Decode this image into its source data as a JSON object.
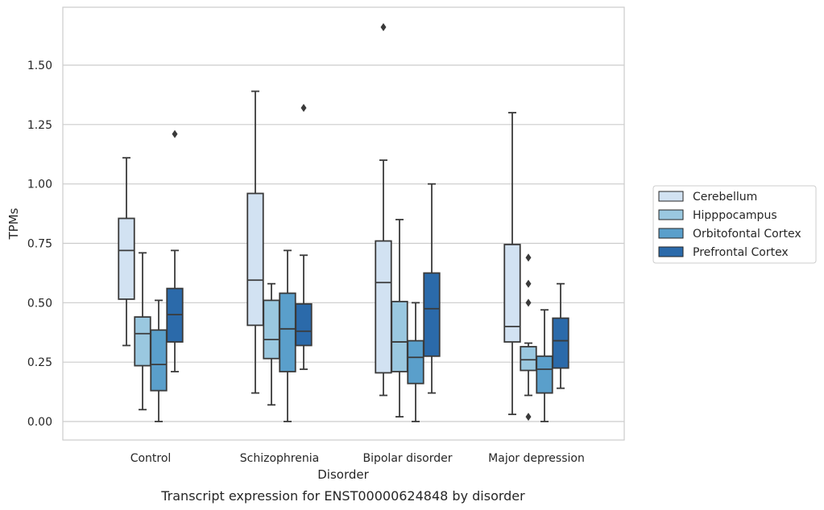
{
  "chart_data": {
    "type": "box",
    "title": "",
    "caption": "Transcript expression for ENST00000624848 by disorder",
    "xlabel": "Disorder",
    "ylabel": "TPMs",
    "ylim": [
      -0.08,
      1.75
    ],
    "yticks": [
      "0.00",
      "0.25",
      "0.50",
      "0.75",
      "1.00",
      "1.25",
      "1.50"
    ],
    "ytick_values": [
      0,
      0.25,
      0.5,
      0.75,
      1.0,
      1.25,
      1.5
    ],
    "categories": [
      "Control",
      "Schizophrenia",
      "Bipolar disorder",
      "Major depression"
    ],
    "grid": "horizontal",
    "legend_position": "right",
    "series": [
      {
        "name": "Cerebellum",
        "color": "#d2e2f2",
        "boxes": [
          {
            "whislo": 0.32,
            "q1": 0.515,
            "med": 0.72,
            "q3": 0.855,
            "whishi": 1.11,
            "fliers": []
          },
          {
            "whislo": 0.12,
            "q1": 0.405,
            "med": 0.595,
            "q3": 0.96,
            "whishi": 1.39,
            "fliers": []
          },
          {
            "whislo": 0.11,
            "q1": 0.205,
            "med": 0.585,
            "q3": 0.76,
            "whishi": 1.1,
            "fliers": [
              1.66
            ]
          },
          {
            "whislo": 0.03,
            "q1": 0.335,
            "med": 0.4,
            "q3": 0.745,
            "whishi": 1.3,
            "fliers": []
          }
        ]
      },
      {
        "name": "Hipppocampus",
        "color": "#9ac8e0",
        "boxes": [
          {
            "whislo": 0.05,
            "q1": 0.235,
            "med": 0.37,
            "q3": 0.44,
            "whishi": 0.71,
            "fliers": []
          },
          {
            "whislo": 0.07,
            "q1": 0.265,
            "med": 0.345,
            "q3": 0.51,
            "whishi": 0.58,
            "fliers": []
          },
          {
            "whislo": 0.02,
            "q1": 0.21,
            "med": 0.335,
            "q3": 0.505,
            "whishi": 0.85,
            "fliers": []
          },
          {
            "whislo": 0.11,
            "q1": 0.215,
            "med": 0.26,
            "q3": 0.315,
            "whishi": 0.33,
            "fliers": [
              0.69,
              0.58,
              0.5,
              0.02
            ]
          }
        ]
      },
      {
        "name": "Orbitofontal Cortex",
        "color": "#5a9fcb",
        "boxes": [
          {
            "whislo": 0.0,
            "q1": 0.13,
            "med": 0.24,
            "q3": 0.385,
            "whishi": 0.51,
            "fliers": []
          },
          {
            "whislo": 0.0,
            "q1": 0.21,
            "med": 0.39,
            "q3": 0.54,
            "whishi": 0.72,
            "fliers": []
          },
          {
            "whislo": 0.0,
            "q1": 0.16,
            "med": 0.27,
            "q3": 0.34,
            "whishi": 0.5,
            "fliers": []
          },
          {
            "whislo": 0.0,
            "q1": 0.12,
            "med": 0.22,
            "q3": 0.275,
            "whishi": 0.47,
            "fliers": []
          }
        ]
      },
      {
        "name": "Prefrontal Cortex",
        "color": "#2b6aaa",
        "boxes": [
          {
            "whislo": 0.21,
            "q1": 0.335,
            "med": 0.45,
            "q3": 0.56,
            "whishi": 0.72,
            "fliers": [
              1.21
            ]
          },
          {
            "whislo": 0.22,
            "q1": 0.32,
            "med": 0.38,
            "q3": 0.495,
            "whishi": 0.7,
            "fliers": [
              1.32
            ]
          },
          {
            "whislo": 0.12,
            "q1": 0.275,
            "med": 0.475,
            "q3": 0.625,
            "whishi": 1.0,
            "fliers": []
          },
          {
            "whislo": 0.14,
            "q1": 0.225,
            "med": 0.34,
            "q3": 0.435,
            "whishi": 0.58,
            "fliers": []
          }
        ]
      }
    ]
  }
}
